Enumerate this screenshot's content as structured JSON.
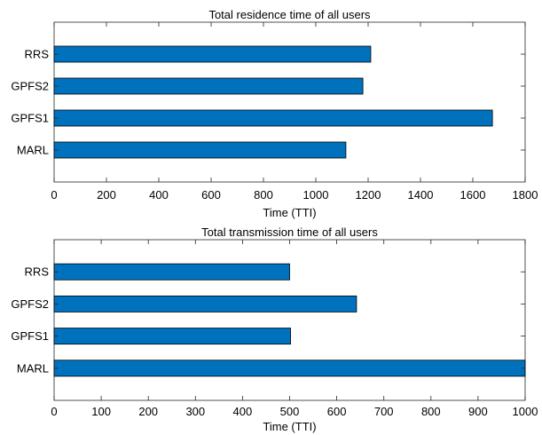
{
  "chart_data": [
    {
      "type": "bar",
      "orientation": "horizontal",
      "title": "Total residence time of all users",
      "xlabel": "Time (TTI)",
      "ylabel": "",
      "categories": [
        "RRS",
        "GPFS2",
        "GPFS1",
        "MARL"
      ],
      "values": [
        1210,
        1180,
        1675,
        1115
      ],
      "xlim": [
        0,
        1800
      ],
      "xticks": [
        0,
        200,
        400,
        600,
        800,
        1000,
        1200,
        1400,
        1600,
        1800
      ],
      "grid": false,
      "bar_color": "#0072BD"
    },
    {
      "type": "bar",
      "orientation": "horizontal",
      "title": "Total transmission time of all users",
      "xlabel": "Time (TTI)",
      "ylabel": "",
      "categories": [
        "RRS",
        "GPFS2",
        "GPFS1",
        "MARL"
      ],
      "values": [
        500,
        642,
        502,
        1000
      ],
      "xlim": [
        0,
        1000
      ],
      "xticks": [
        0,
        100,
        200,
        300,
        400,
        500,
        600,
        700,
        800,
        900,
        1000
      ],
      "grid": false,
      "bar_color": "#0072BD"
    }
  ]
}
